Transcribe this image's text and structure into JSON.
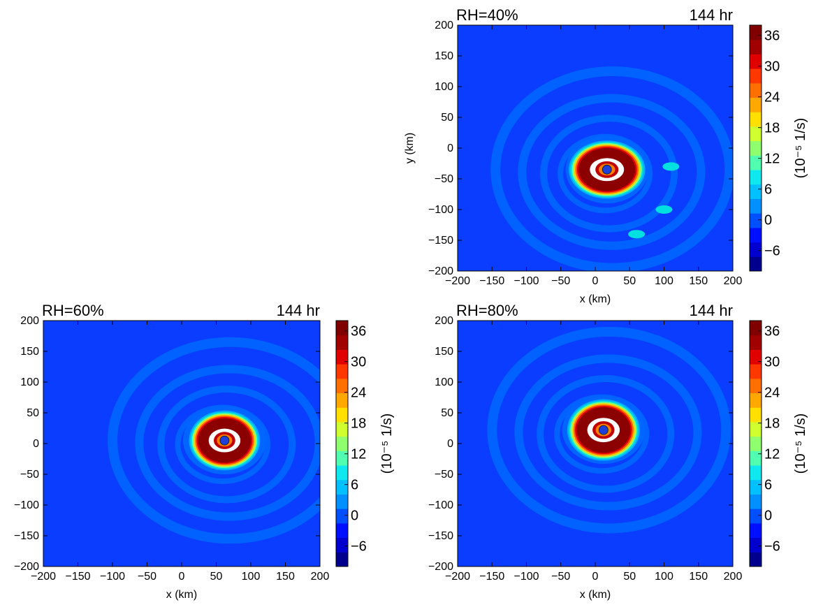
{
  "chart_data": [
    {
      "type": "heatmap",
      "panel": "top-right",
      "title_left": "RH=40%",
      "title_right": "144 hr",
      "xlabel": "x (km)",
      "ylabel": "y (km)",
      "xlim": [
        -200,
        200
      ],
      "ylim": [
        -200,
        200
      ],
      "xticks": [
        "−200",
        "−150",
        "−100",
        "−50",
        "0",
        "50",
        "100",
        "150",
        "200"
      ],
      "yticks": [
        "200",
        "150",
        "100",
        "50",
        "0",
        "−50",
        "−100",
        "−150",
        "−200"
      ],
      "center_marker": [
        17,
        -35
      ],
      "eyewall": {
        "center": [
          17,
          -35
        ],
        "rx": 40,
        "ry": 34,
        "max": 38
      },
      "secondary_features": [
        [
          110,
          -30
        ],
        [
          60,
          -140
        ],
        [
          100,
          -100
        ]
      ],
      "colorbar": {
        "label": "(10⁻⁵ 1/s)",
        "ticks": [
          "36",
          "30",
          "24",
          "18",
          "12",
          "6",
          "0",
          "−6"
        ],
        "range": [
          -10,
          38
        ]
      }
    },
    {
      "type": "heatmap",
      "panel": "bottom-left",
      "title_left": "RH=60%",
      "title_right": "144 hr",
      "xlabel": "x (km)",
      "ylabel": "",
      "xlim": [
        -200,
        200
      ],
      "ylim": [
        -200,
        200
      ],
      "xticks": [
        "−200",
        "−150",
        "−100",
        "−50",
        "0",
        "50",
        "100",
        "150",
        "200"
      ],
      "yticks": [
        "200",
        "150",
        "100",
        "50",
        "0",
        "−50",
        "−100",
        "−150",
        "−200"
      ],
      "center_marker": [
        62,
        5
      ],
      "eyewall": {
        "center": [
          62,
          5
        ],
        "rx": 37,
        "ry": 35,
        "max": 38
      },
      "colorbar": {
        "label": "(10⁻⁵ 1/s)",
        "ticks": [
          "36",
          "30",
          "24",
          "18",
          "12",
          "6",
          "0",
          "−6"
        ],
        "range": [
          -10,
          38
        ]
      }
    },
    {
      "type": "heatmap",
      "panel": "bottom-right",
      "title_left": "RH=80%",
      "title_right": "144 hr",
      "xlabel": "x (km)",
      "ylabel": "",
      "xlim": [
        -200,
        200
      ],
      "ylim": [
        -200,
        200
      ],
      "xticks": [
        "−200",
        "−150",
        "−100",
        "−50",
        "0",
        "50",
        "100",
        "150",
        "200"
      ],
      "yticks": [
        "200",
        "150",
        "100",
        "50",
        "0",
        "−50",
        "−100",
        "−150",
        "−200"
      ],
      "center_marker": [
        12,
        22
      ],
      "eyewall": {
        "center": [
          12,
          22
        ],
        "rx": 38,
        "ry": 36,
        "max": 38
      },
      "colorbar": {
        "label": "(10⁻⁵ 1/s)",
        "ticks": [
          "36",
          "30",
          "24",
          "18",
          "12",
          "6",
          "0",
          "−6"
        ],
        "range": [
          -10,
          38
        ]
      }
    }
  ],
  "colors": {
    "background_field": "#0a3dff",
    "band_field": "#0066ff",
    "eyewall_ring": [
      "#0066ff",
      "#00aaff",
      "#00e0e0",
      "#7fff7f",
      "#ffd000",
      "#ff6000",
      "#e00000",
      "#8b0000"
    ],
    "center_marker": "#1f3fd6",
    "colorbar": [
      "#00008f",
      "#0000cf",
      "#0010ff",
      "#0050ff",
      "#0090ff",
      "#00c0ff",
      "#10e8ef",
      "#50ffaf",
      "#90ff6f",
      "#d0ff2f",
      "#ffe000",
      "#ffa800",
      "#ff7000",
      "#ff3800",
      "#e00000",
      "#a00000",
      "#800000"
    ]
  }
}
